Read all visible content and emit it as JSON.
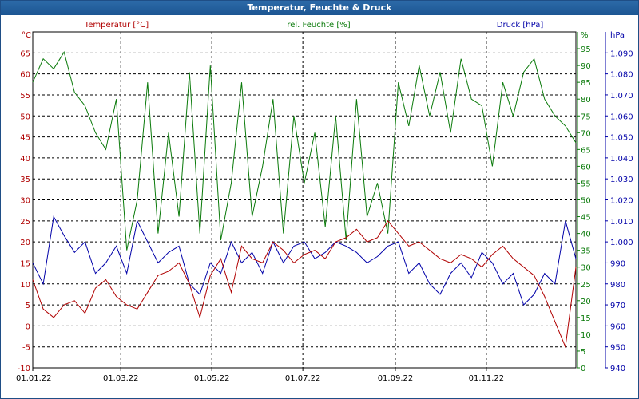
{
  "window": {
    "title": "Temperatur, Feuchte & Druck"
  },
  "colors": {
    "temperature": "#b00000",
    "humidity": "#0a7a0a",
    "pressure": "#0000a8",
    "grid": "#000000",
    "background": "#ffffff",
    "title_bar": "#1f5a9a"
  },
  "chart_data": {
    "type": "line",
    "title": "Temperatur, Feuchte & Druck",
    "grid": true,
    "x_ticks": [
      "01.01.22",
      "01.03.22",
      "01.05.22",
      "01.07.22",
      "01.09.22",
      "01.11.22"
    ],
    "x_range": [
      "2022-01-01",
      "2022-12-31"
    ],
    "axes": {
      "left": {
        "label": "Temperatur [°C]",
        "unit": "°C",
        "range": [
          -10,
          70
        ],
        "ticks": [
          -10,
          -5,
          0,
          5,
          10,
          15,
          20,
          25,
          30,
          35,
          40,
          45,
          50,
          55,
          60,
          65
        ]
      },
      "middle": {
        "label": "rel. Feuchte [%]",
        "unit": "%",
        "range": [
          0,
          100
        ],
        "ticks": [
          0,
          5,
          10,
          15,
          20,
          25,
          30,
          35,
          40,
          45,
          50,
          55,
          60,
          65,
          70,
          75,
          80,
          85,
          90,
          95
        ]
      },
      "right": {
        "label": "Druck [hPa]",
        "unit": "hPa",
        "range": [
          940,
          1100
        ],
        "ticks": [
          "940",
          "950",
          "960",
          "970",
          "980",
          "990",
          "1.000",
          "1.010",
          "1.020",
          "1.030",
          "1.040",
          "1.050",
          "1.060",
          "1.070",
          "1.080",
          "1.090"
        ]
      }
    },
    "series": [
      {
        "name": "Temperatur [°C]",
        "axis": "left",
        "color": "#b00000",
        "x": [
          "2022-01-01",
          "2022-01-08",
          "2022-01-15",
          "2022-01-22",
          "2022-01-29",
          "2022-02-05",
          "2022-02-12",
          "2022-02-19",
          "2022-02-26",
          "2022-03-05",
          "2022-03-12",
          "2022-03-19",
          "2022-03-26",
          "2022-04-02",
          "2022-04-09",
          "2022-04-16",
          "2022-04-23",
          "2022-04-30",
          "2022-05-07",
          "2022-05-14",
          "2022-05-21",
          "2022-05-28",
          "2022-06-04",
          "2022-06-11",
          "2022-06-18",
          "2022-06-25",
          "2022-07-02",
          "2022-07-09",
          "2022-07-16",
          "2022-07-23",
          "2022-07-30",
          "2022-08-06",
          "2022-08-13",
          "2022-08-20",
          "2022-08-27",
          "2022-09-03",
          "2022-09-10",
          "2022-09-17",
          "2022-09-24",
          "2022-10-01",
          "2022-10-08",
          "2022-10-15",
          "2022-10-22",
          "2022-10-29",
          "2022-11-05",
          "2022-11-12",
          "2022-11-19",
          "2022-11-26",
          "2022-12-03",
          "2022-12-10",
          "2022-12-17",
          "2022-12-24",
          "2022-12-31"
        ],
        "values": [
          11,
          4,
          2,
          5,
          6,
          3,
          9,
          11,
          7,
          5,
          4,
          8,
          12,
          13,
          15,
          10,
          2,
          12,
          16,
          8,
          19,
          16,
          15,
          20,
          18,
          15,
          17,
          18,
          16,
          20,
          21,
          23,
          20,
          21,
          25,
          22,
          19,
          20,
          18,
          16,
          15,
          17,
          16,
          14,
          17,
          19,
          16,
          14,
          12,
          7,
          1,
          -5,
          14
        ]
      },
      {
        "name": "rel. Feuchte [%]",
        "axis": "middle",
        "color": "#0a7a0a",
        "x": [
          "2022-01-01",
          "2022-01-08",
          "2022-01-15",
          "2022-01-22",
          "2022-01-29",
          "2022-02-05",
          "2022-02-12",
          "2022-02-19",
          "2022-02-26",
          "2022-03-05",
          "2022-03-12",
          "2022-03-19",
          "2022-03-26",
          "2022-04-02",
          "2022-04-09",
          "2022-04-16",
          "2022-04-23",
          "2022-04-30",
          "2022-05-07",
          "2022-05-14",
          "2022-05-21",
          "2022-05-28",
          "2022-06-04",
          "2022-06-11",
          "2022-06-18",
          "2022-06-25",
          "2022-07-02",
          "2022-07-09",
          "2022-07-16",
          "2022-07-23",
          "2022-07-30",
          "2022-08-06",
          "2022-08-13",
          "2022-08-20",
          "2022-08-27",
          "2022-09-03",
          "2022-09-10",
          "2022-09-17",
          "2022-09-24",
          "2022-10-01",
          "2022-10-08",
          "2022-10-15",
          "2022-10-22",
          "2022-10-29",
          "2022-11-05",
          "2022-11-12",
          "2022-11-19",
          "2022-11-26",
          "2022-12-03",
          "2022-12-10",
          "2022-12-17",
          "2022-12-24",
          "2022-12-31"
        ],
        "values": [
          85,
          92,
          89,
          94,
          82,
          78,
          70,
          65,
          80,
          35,
          50,
          85,
          40,
          70,
          45,
          88,
          40,
          90,
          38,
          55,
          85,
          45,
          60,
          80,
          40,
          75,
          55,
          70,
          42,
          75,
          38,
          80,
          45,
          55,
          40,
          85,
          72,
          90,
          75,
          88,
          70,
          92,
          80,
          78,
          60,
          85,
          75,
          88,
          92,
          80,
          75,
          72,
          67
        ]
      },
      {
        "name": "Druck [hPa]",
        "axis": "right",
        "color": "#0000a8",
        "x": [
          "2022-01-01",
          "2022-01-08",
          "2022-01-15",
          "2022-01-22",
          "2022-01-29",
          "2022-02-05",
          "2022-02-12",
          "2022-02-19",
          "2022-02-26",
          "2022-03-05",
          "2022-03-12",
          "2022-03-19",
          "2022-03-26",
          "2022-04-02",
          "2022-04-09",
          "2022-04-16",
          "2022-04-23",
          "2022-04-30",
          "2022-05-07",
          "2022-05-14",
          "2022-05-21",
          "2022-05-28",
          "2022-06-04",
          "2022-06-11",
          "2022-06-18",
          "2022-06-25",
          "2022-07-02",
          "2022-07-09",
          "2022-07-16",
          "2022-07-23",
          "2022-07-30",
          "2022-08-06",
          "2022-08-13",
          "2022-08-20",
          "2022-08-27",
          "2022-09-03",
          "2022-09-10",
          "2022-09-17",
          "2022-09-24",
          "2022-10-01",
          "2022-10-08",
          "2022-10-15",
          "2022-10-22",
          "2022-10-29",
          "2022-11-05",
          "2022-11-12",
          "2022-11-19",
          "2022-11-26",
          "2022-12-03",
          "2022-12-10",
          "2022-12-17",
          "2022-12-24",
          "2022-12-31"
        ],
        "values": [
          990,
          980,
          1012,
          1003,
          995,
          1000,
          985,
          990,
          998,
          985,
          1010,
          1000,
          990,
          995,
          998,
          980,
          975,
          990,
          985,
          1000,
          990,
          995,
          985,
          1000,
          990,
          998,
          1000,
          992,
          995,
          1000,
          998,
          995,
          990,
          993,
          998,
          1000,
          985,
          990,
          980,
          975,
          985,
          990,
          983,
          995,
          990,
          980,
          985,
          970,
          975,
          985,
          980,
          1010,
          992
        ]
      }
    ]
  }
}
